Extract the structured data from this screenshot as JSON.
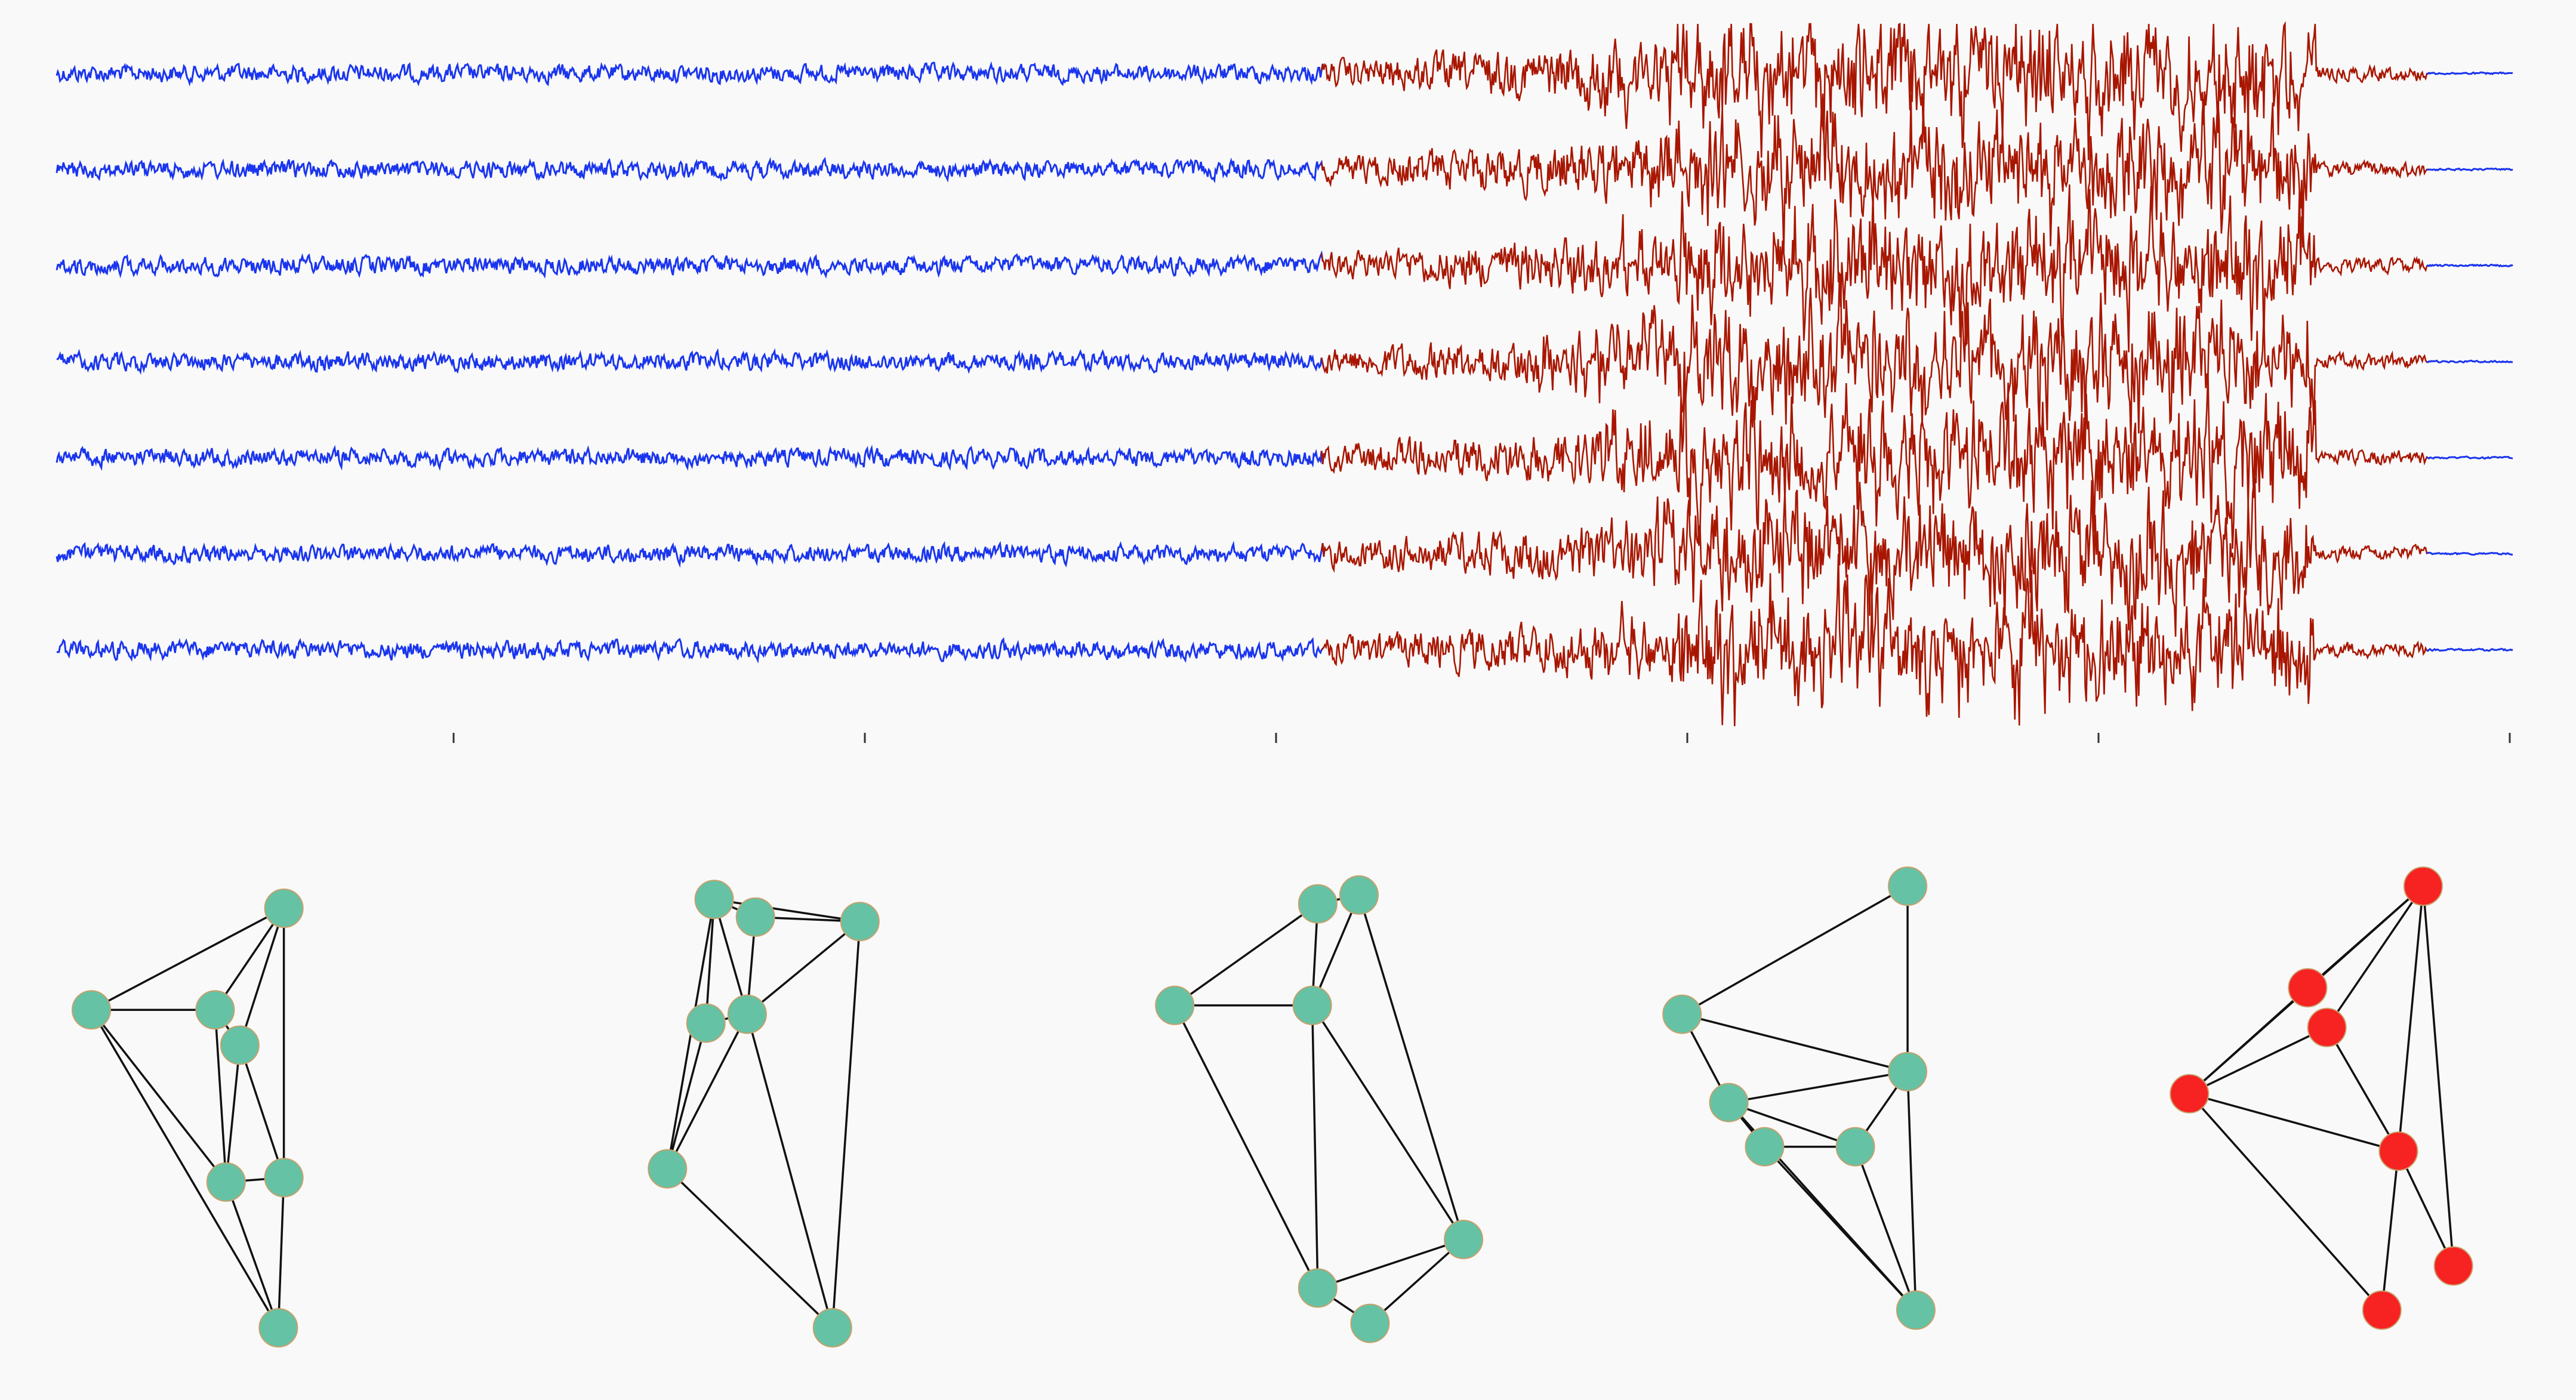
{
  "colors": {
    "background": "#f9f9f9",
    "baseline": "#1a35ee",
    "seizure": "#a81600",
    "tick": "#333333",
    "edge": "#111111",
    "node_normal": "#66c2a5",
    "node_active": "#f72222"
  },
  "traces": {
    "count": 7,
    "amplitude": [
      0.35,
      0.35,
      0.35,
      0.35,
      0.35,
      0.35,
      0.35
    ],
    "segments": [
      {
        "from": 0.0,
        "to": 0.515,
        "state": "baseline",
        "level": 0.18
      },
      {
        "from": 0.515,
        "to": 0.6,
        "state": "seizure",
        "level": 0.35
      },
      {
        "from": 0.6,
        "to": 0.66,
        "state": "seizure",
        "level": 0.75
      },
      {
        "from": 0.66,
        "to": 0.92,
        "state": "seizure",
        "level": 1.0
      },
      {
        "from": 0.92,
        "to": 0.965,
        "state": "seizure",
        "level": 0.15
      },
      {
        "from": 0.965,
        "to": 1.0,
        "state": "baseline",
        "level": 0.02
      }
    ],
    "onset_fraction": [
      0.62,
      0.64,
      0.66,
      0.6,
      0.63,
      0.64,
      0.66
    ],
    "x_ticks": 6
  },
  "graphs": [
    {
      "state": "normal",
      "nodes": [
        [
          0.45,
          0.05
        ],
        [
          -0.25,
          0.28
        ],
        [
          0.2,
          0.28
        ],
        [
          0.29,
          0.36
        ],
        [
          0.24,
          0.67
        ],
        [
          0.45,
          0.66
        ],
        [
          0.43,
          1.0
        ]
      ],
      "edges": [
        [
          0,
          1
        ],
        [
          0,
          2
        ],
        [
          0,
          3
        ],
        [
          0,
          5
        ],
        [
          1,
          2
        ],
        [
          1,
          4
        ],
        [
          1,
          6
        ],
        [
          2,
          3
        ],
        [
          2,
          4
        ],
        [
          3,
          4
        ],
        [
          3,
          5
        ],
        [
          4,
          5
        ],
        [
          4,
          6
        ],
        [
          5,
          6
        ]
      ]
    },
    {
      "state": "normal",
      "nodes": [
        [
          0.17,
          0.03
        ],
        [
          0.32,
          0.07
        ],
        [
          0.7,
          0.08
        ],
        [
          0.14,
          0.31
        ],
        [
          0.29,
          0.29
        ],
        [
          0.0,
          0.64
        ],
        [
          0.6,
          1.0
        ]
      ],
      "edges": [
        [
          0,
          1
        ],
        [
          0,
          2
        ],
        [
          0,
          3
        ],
        [
          0,
          4
        ],
        [
          0,
          5
        ],
        [
          1,
          2
        ],
        [
          1,
          4
        ],
        [
          2,
          4
        ],
        [
          2,
          6
        ],
        [
          3,
          4
        ],
        [
          3,
          5
        ],
        [
          4,
          5
        ],
        [
          4,
          6
        ],
        [
          5,
          6
        ]
      ]
    },
    {
      "state": "normal",
      "nodes": [
        [
          0.52,
          0.04
        ],
        [
          0.67,
          0.02
        ],
        [
          0.0,
          0.27
        ],
        [
          0.5,
          0.27
        ],
        [
          1.05,
          0.8
        ],
        [
          0.52,
          0.91
        ],
        [
          0.71,
          0.99
        ]
      ],
      "edges": [
        [
          0,
          1
        ],
        [
          0,
          2
        ],
        [
          0,
          3
        ],
        [
          1,
          3
        ],
        [
          1,
          4
        ],
        [
          2,
          3
        ],
        [
          2,
          5
        ],
        [
          3,
          4
        ],
        [
          3,
          5
        ],
        [
          4,
          5
        ],
        [
          4,
          6
        ],
        [
          5,
          6
        ]
      ]
    },
    {
      "state": "normal",
      "nodes": [
        [
          0.82,
          0.0
        ],
        [
          0.0,
          0.29
        ],
        [
          0.82,
          0.42
        ],
        [
          0.17,
          0.49
        ],
        [
          0.3,
          0.59
        ],
        [
          0.63,
          0.59
        ],
        [
          0.85,
          0.96
        ]
      ],
      "edges": [
        [
          0,
          1
        ],
        [
          0,
          2
        ],
        [
          1,
          2
        ],
        [
          1,
          3
        ],
        [
          2,
          3
        ],
        [
          2,
          5
        ],
        [
          3,
          4
        ],
        [
          3,
          5
        ],
        [
          3,
          6
        ],
        [
          4,
          5
        ],
        [
          4,
          6
        ],
        [
          5,
          6
        ],
        [
          2,
          6
        ]
      ]
    },
    {
      "state": "active",
      "nodes": [
        [
          0.85,
          0.0
        ],
        [
          0.43,
          0.23
        ],
        [
          0.5,
          0.32
        ],
        [
          0.0,
          0.47
        ],
        [
          0.76,
          0.6
        ],
        [
          0.96,
          0.86
        ],
        [
          0.7,
          0.96
        ]
      ],
      "edges": [
        [
          0,
          1
        ],
        [
          0,
          2
        ],
        [
          0,
          3
        ],
        [
          0,
          4
        ],
        [
          0,
          5
        ],
        [
          1,
          3
        ],
        [
          2,
          3
        ],
        [
          2,
          4
        ],
        [
          3,
          4
        ],
        [
          3,
          6
        ],
        [
          4,
          6
        ],
        [
          5,
          4
        ]
      ]
    }
  ]
}
